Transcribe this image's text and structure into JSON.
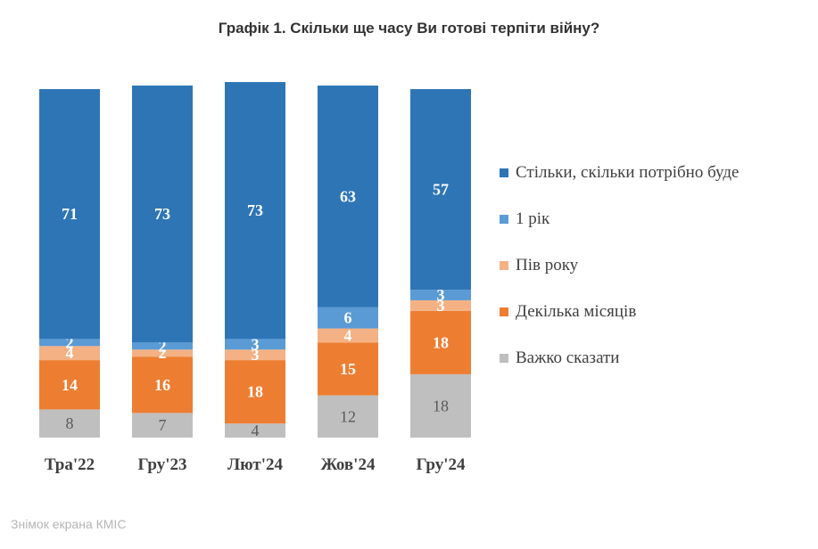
{
  "title": "Графік 1. Скільки ще часу Ви готові терпіти війну?",
  "footer": "Знімок екрана КМІС",
  "chart_data": {
    "type": "bar",
    "stacked": true,
    "title": "Графік 1. Скільки ще часу Ви готові терпіти війну?",
    "categories": [
      "Тра'22",
      "Гру'23",
      "Лют'24",
      "Жов'24",
      "Гру'24"
    ],
    "series": [
      {
        "name": "Важко сказати",
        "color": "#BFBFBF",
        "values": [
          8,
          7,
          4,
          12,
          18
        ]
      },
      {
        "name": "Декілька місяців",
        "color": "#ED7D31",
        "values": [
          14,
          16,
          18,
          15,
          18
        ]
      },
      {
        "name": "Пів року",
        "color": "#F4B183",
        "values": [
          4,
          2,
          3,
          4,
          3
        ]
      },
      {
        "name": "1 рік",
        "color": "#5B9BD5",
        "values": [
          2,
          2,
          3,
          6,
          3
        ]
      },
      {
        "name": "Стільки, скільки потрібно буде",
        "color": "#2E75B6",
        "values": [
          71,
          73,
          73,
          63,
          57
        ]
      }
    ],
    "legend_order": [
      "Стільки, скільки потрібно буде",
      "1 рік",
      "Пів року",
      "Декілька місяців",
      "Важко сказати"
    ],
    "ylim": [
      0,
      100
    ],
    "xlabel": "",
    "ylabel": ""
  }
}
